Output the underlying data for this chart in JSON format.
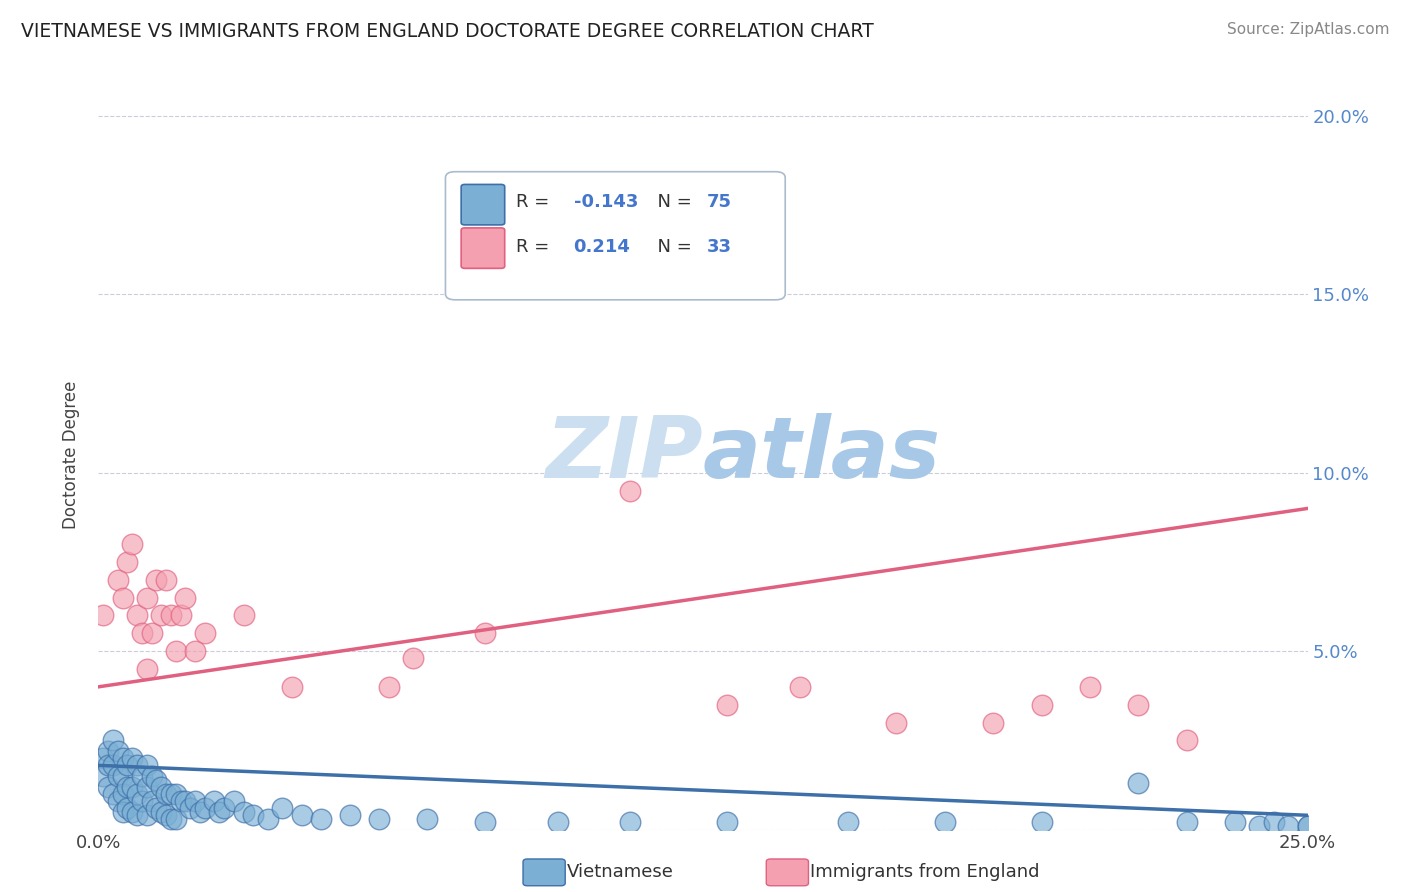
{
  "title": "VIETNAMESE VS IMMIGRANTS FROM ENGLAND DOCTORATE DEGREE CORRELATION CHART",
  "source": "Source: ZipAtlas.com",
  "ylabel": "Doctorate Degree",
  "xlim": [
    0.0,
    0.25
  ],
  "ylim": [
    0.0,
    0.21
  ],
  "xticks": [
    0.0,
    0.05,
    0.1,
    0.15,
    0.2,
    0.25
  ],
  "yticks": [
    0.0,
    0.05,
    0.1,
    0.15,
    0.2
  ],
  "xticklabels_show": [
    "0.0%",
    "25.0%"
  ],
  "xticklabels_pos": [
    0.0,
    0.25
  ],
  "yticklabels": [
    "",
    "5.0%",
    "10.0%",
    "15.0%",
    "20.0%"
  ],
  "blue_R": -0.143,
  "blue_N": 75,
  "pink_R": 0.214,
  "pink_N": 33,
  "blue_color": "#7BAFD4",
  "pink_color": "#F4A0B0",
  "blue_line_color": "#3D6FA8",
  "pink_line_color": "#E06080",
  "background_color": "#FFFFFF",
  "watermark_color": "#DDEEFF",
  "grid_color": "#CCCCDD",
  "blue_line_y0": 0.018,
  "blue_line_y1": 0.004,
  "pink_line_y0": 0.04,
  "pink_line_y1": 0.09,
  "blue_x": [
    0.001,
    0.001,
    0.002,
    0.002,
    0.002,
    0.003,
    0.003,
    0.003,
    0.004,
    0.004,
    0.004,
    0.005,
    0.005,
    0.005,
    0.005,
    0.006,
    0.006,
    0.006,
    0.007,
    0.007,
    0.007,
    0.008,
    0.008,
    0.008,
    0.009,
    0.009,
    0.01,
    0.01,
    0.01,
    0.011,
    0.011,
    0.012,
    0.012,
    0.013,
    0.013,
    0.014,
    0.014,
    0.015,
    0.015,
    0.016,
    0.016,
    0.017,
    0.018,
    0.019,
    0.02,
    0.021,
    0.022,
    0.024,
    0.025,
    0.026,
    0.028,
    0.03,
    0.032,
    0.035,
    0.038,
    0.042,
    0.046,
    0.052,
    0.058,
    0.068,
    0.08,
    0.095,
    0.11,
    0.13,
    0.155,
    0.175,
    0.195,
    0.215,
    0.225,
    0.235,
    0.24,
    0.243,
    0.246,
    0.25,
    0.25
  ],
  "blue_y": [
    0.02,
    0.015,
    0.022,
    0.018,
    0.012,
    0.025,
    0.018,
    0.01,
    0.022,
    0.015,
    0.008,
    0.02,
    0.015,
    0.01,
    0.005,
    0.018,
    0.012,
    0.006,
    0.02,
    0.012,
    0.005,
    0.018,
    0.01,
    0.004,
    0.015,
    0.008,
    0.018,
    0.012,
    0.004,
    0.015,
    0.008,
    0.014,
    0.006,
    0.012,
    0.005,
    0.01,
    0.004,
    0.01,
    0.003,
    0.01,
    0.003,
    0.008,
    0.008,
    0.006,
    0.008,
    0.005,
    0.006,
    0.008,
    0.005,
    0.006,
    0.008,
    0.005,
    0.004,
    0.003,
    0.006,
    0.004,
    0.003,
    0.004,
    0.003,
    0.003,
    0.002,
    0.002,
    0.002,
    0.002,
    0.002,
    0.002,
    0.002,
    0.013,
    0.002,
    0.002,
    0.001,
    0.002,
    0.001,
    0.001,
    0.001
  ],
  "pink_x": [
    0.001,
    0.004,
    0.005,
    0.006,
    0.007,
    0.008,
    0.009,
    0.01,
    0.01,
    0.011,
    0.012,
    0.013,
    0.014,
    0.015,
    0.016,
    0.017,
    0.018,
    0.02,
    0.022,
    0.03,
    0.04,
    0.06,
    0.065,
    0.08,
    0.11,
    0.13,
    0.145,
    0.165,
    0.185,
    0.195,
    0.205,
    0.215,
    0.225
  ],
  "pink_y": [
    0.06,
    0.07,
    0.065,
    0.075,
    0.08,
    0.06,
    0.055,
    0.065,
    0.045,
    0.055,
    0.07,
    0.06,
    0.07,
    0.06,
    0.05,
    0.06,
    0.065,
    0.05,
    0.055,
    0.06,
    0.04,
    0.04,
    0.048,
    0.055,
    0.095,
    0.035,
    0.04,
    0.03,
    0.03,
    0.035,
    0.04,
    0.035,
    0.025
  ]
}
